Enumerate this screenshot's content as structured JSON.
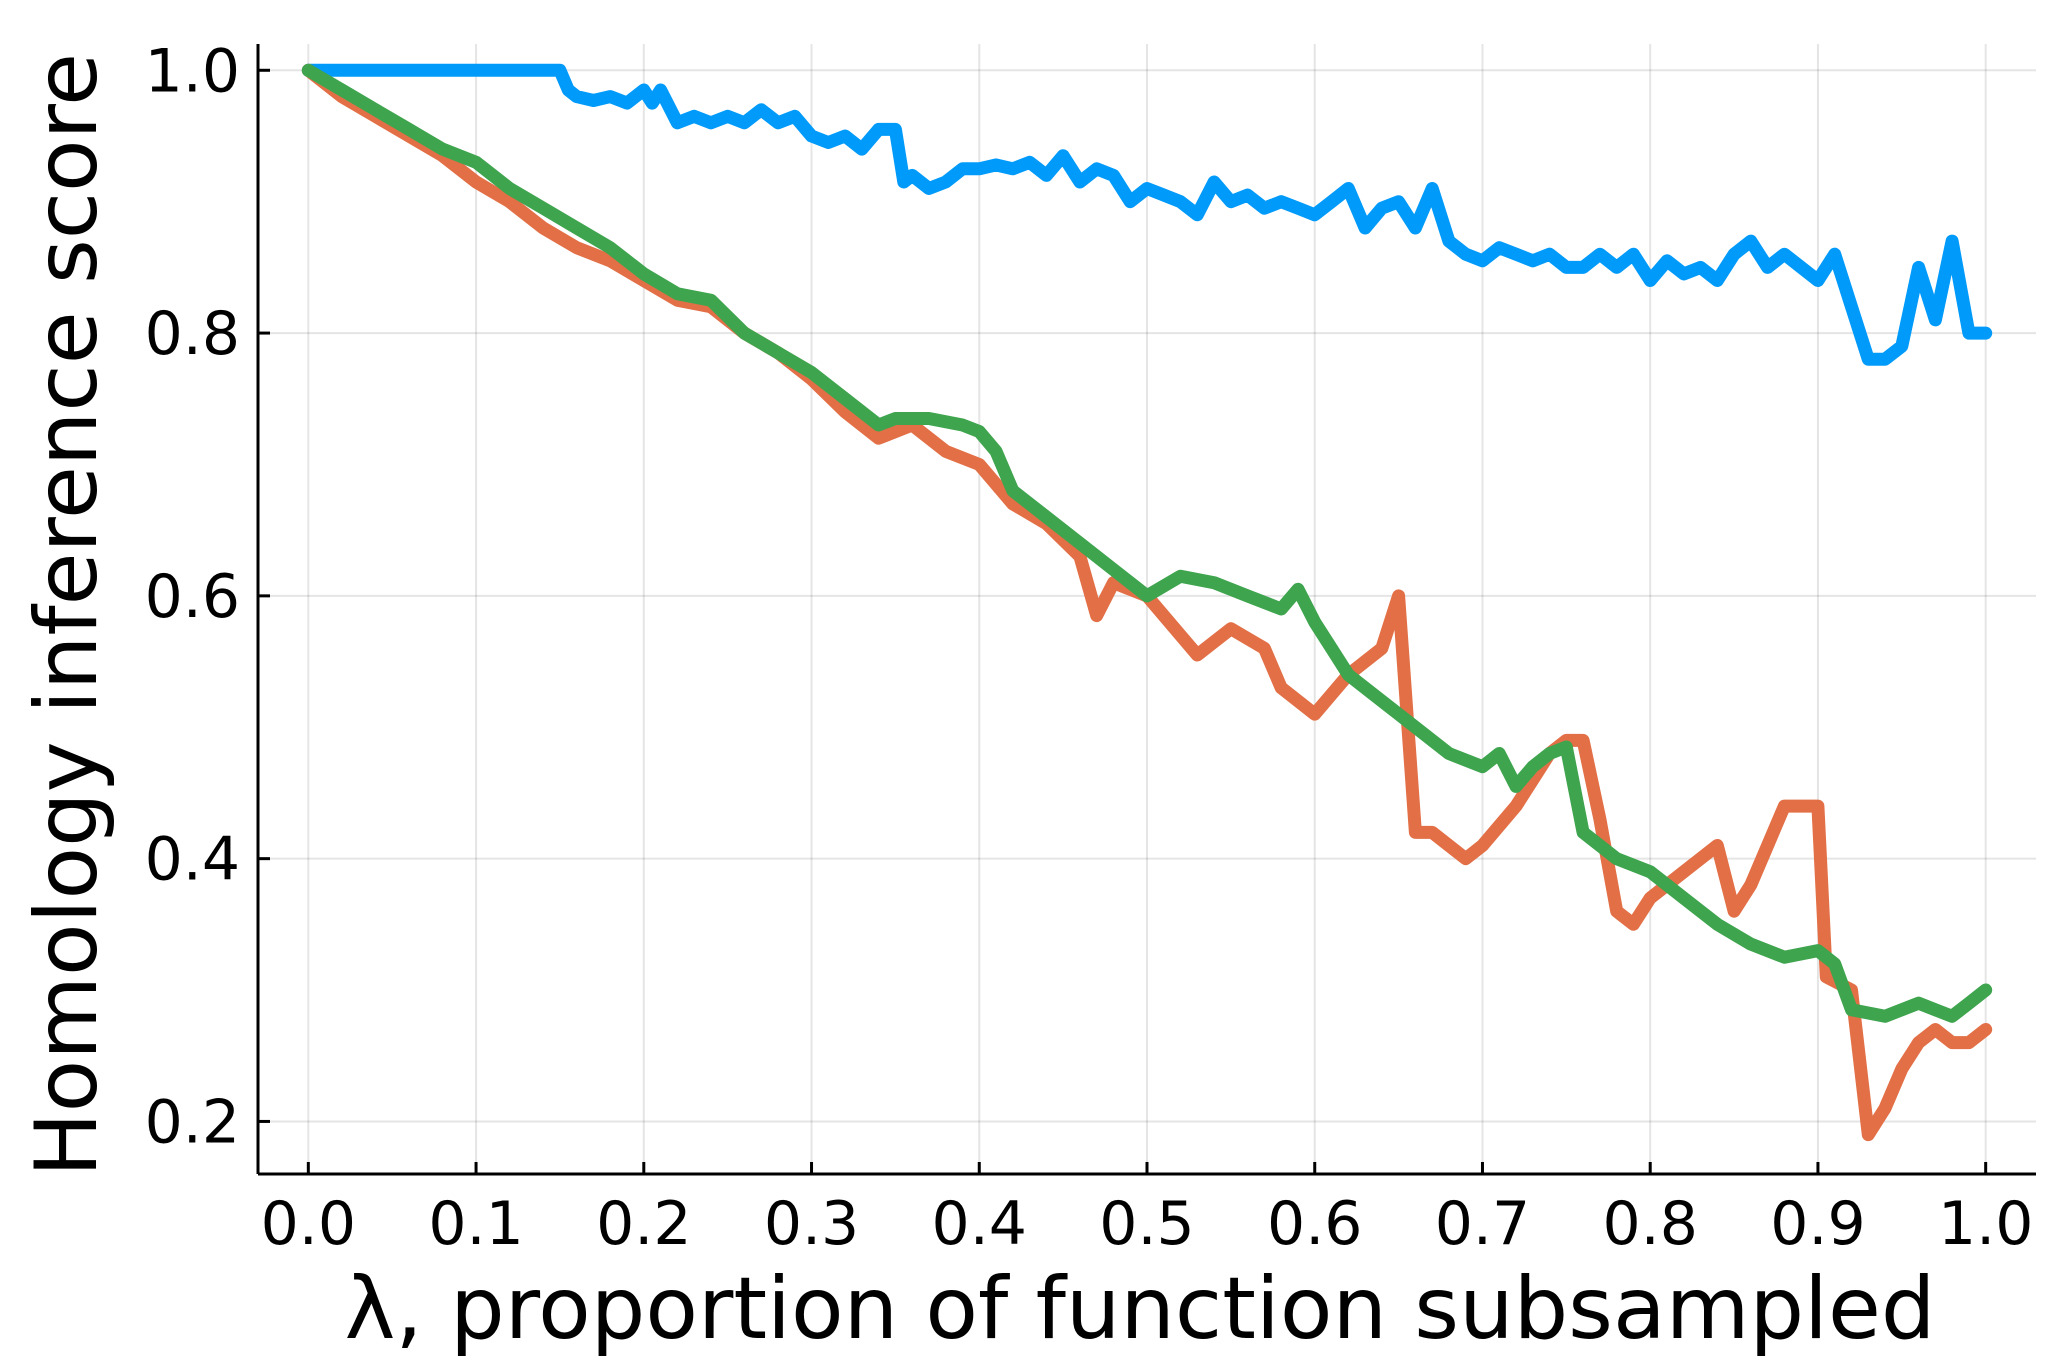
{
  "chart_data": {
    "type": "line",
    "title": "",
    "xlabel": "λ, proportion of function subsampled",
    "ylabel": "Homology inference score",
    "xlim": [
      -0.03,
      1.03
    ],
    "ylim": [
      0.16,
      1.02
    ],
    "xticks": [
      0.0,
      0.1,
      0.2,
      0.3,
      0.4,
      0.5,
      0.6,
      0.7,
      0.8,
      0.9,
      1.0
    ],
    "xtick_labels": [
      "0.0",
      "0.1",
      "0.2",
      "0.3",
      "0.4",
      "0.5",
      "0.6",
      "0.7",
      "0.8",
      "0.9",
      "1.0"
    ],
    "yticks": [
      0.2,
      0.4,
      0.6,
      0.8,
      1.0
    ],
    "ytick_labels": [
      "0.2",
      "0.4",
      "0.6",
      "0.8",
      "1.0"
    ],
    "grid": true,
    "legend": "none",
    "series": [
      {
        "color": "#009AFA",
        "x": [
          0.0,
          0.04,
          0.08,
          0.12,
          0.15,
          0.155,
          0.16,
          0.17,
          0.18,
          0.19,
          0.2,
          0.205,
          0.21,
          0.22,
          0.23,
          0.24,
          0.25,
          0.26,
          0.27,
          0.28,
          0.29,
          0.3,
          0.31,
          0.32,
          0.33,
          0.34,
          0.35,
          0.355,
          0.36,
          0.37,
          0.38,
          0.39,
          0.4,
          0.41,
          0.42,
          0.43,
          0.44,
          0.45,
          0.46,
          0.47,
          0.48,
          0.49,
          0.5,
          0.51,
          0.52,
          0.53,
          0.54,
          0.55,
          0.56,
          0.57,
          0.58,
          0.59,
          0.6,
          0.61,
          0.62,
          0.63,
          0.64,
          0.65,
          0.66,
          0.67,
          0.68,
          0.69,
          0.7,
          0.71,
          0.72,
          0.73,
          0.74,
          0.75,
          0.76,
          0.77,
          0.78,
          0.79,
          0.8,
          0.81,
          0.82,
          0.83,
          0.84,
          0.85,
          0.86,
          0.87,
          0.88,
          0.89,
          0.9,
          0.91,
          0.92,
          0.93,
          0.94,
          0.95,
          0.96,
          0.97,
          0.98,
          0.99,
          1.0
        ],
        "y": [
          1.0,
          1.0,
          1.0,
          1.0,
          1.0,
          0.985,
          0.98,
          0.977,
          0.98,
          0.975,
          0.985,
          0.975,
          0.985,
          0.96,
          0.965,
          0.96,
          0.965,
          0.96,
          0.97,
          0.96,
          0.965,
          0.95,
          0.945,
          0.95,
          0.94,
          0.955,
          0.955,
          0.915,
          0.92,
          0.91,
          0.915,
          0.925,
          0.925,
          0.928,
          0.925,
          0.93,
          0.92,
          0.935,
          0.915,
          0.925,
          0.92,
          0.9,
          0.91,
          0.905,
          0.9,
          0.89,
          0.915,
          0.9,
          0.905,
          0.895,
          0.9,
          0.895,
          0.89,
          0.9,
          0.91,
          0.88,
          0.895,
          0.9,
          0.88,
          0.91,
          0.87,
          0.86,
          0.855,
          0.865,
          0.86,
          0.855,
          0.86,
          0.85,
          0.85,
          0.86,
          0.85,
          0.86,
          0.84,
          0.855,
          0.845,
          0.85,
          0.84,
          0.86,
          0.87,
          0.85,
          0.86,
          0.85,
          0.84,
          0.86,
          0.82,
          0.78,
          0.78,
          0.79,
          0.85,
          0.81,
          0.87,
          0.8,
          0.8
        ]
      },
      {
        "color": "#E26F46",
        "x": [
          0.0,
          0.02,
          0.04,
          0.06,
          0.08,
          0.1,
          0.12,
          0.14,
          0.16,
          0.18,
          0.2,
          0.22,
          0.24,
          0.26,
          0.28,
          0.3,
          0.32,
          0.34,
          0.36,
          0.38,
          0.4,
          0.42,
          0.44,
          0.46,
          0.47,
          0.48,
          0.5,
          0.52,
          0.53,
          0.55,
          0.57,
          0.58,
          0.6,
          0.62,
          0.64,
          0.65,
          0.66,
          0.67,
          0.68,
          0.69,
          0.7,
          0.72,
          0.74,
          0.75,
          0.76,
          0.77,
          0.78,
          0.79,
          0.8,
          0.82,
          0.84,
          0.85,
          0.86,
          0.88,
          0.9,
          0.905,
          0.92,
          0.93,
          0.94,
          0.95,
          0.96,
          0.97,
          0.98,
          0.99,
          1.0
        ],
        "y": [
          1.0,
          0.98,
          0.965,
          0.95,
          0.935,
          0.915,
          0.9,
          0.88,
          0.865,
          0.855,
          0.84,
          0.825,
          0.82,
          0.8,
          0.785,
          0.765,
          0.74,
          0.72,
          0.73,
          0.71,
          0.7,
          0.67,
          0.655,
          0.63,
          0.585,
          0.61,
          0.6,
          0.57,
          0.555,
          0.575,
          0.56,
          0.53,
          0.51,
          0.54,
          0.56,
          0.6,
          0.42,
          0.42,
          0.41,
          0.4,
          0.41,
          0.44,
          0.48,
          0.49,
          0.49,
          0.43,
          0.36,
          0.35,
          0.37,
          0.39,
          0.41,
          0.36,
          0.38,
          0.44,
          0.44,
          0.31,
          0.3,
          0.19,
          0.21,
          0.24,
          0.26,
          0.27,
          0.26,
          0.26,
          0.27
        ]
      },
      {
        "color": "#3EA44E",
        "x": [
          0.0,
          0.02,
          0.04,
          0.06,
          0.08,
          0.1,
          0.12,
          0.14,
          0.16,
          0.18,
          0.2,
          0.22,
          0.24,
          0.26,
          0.28,
          0.3,
          0.32,
          0.34,
          0.35,
          0.37,
          0.39,
          0.4,
          0.41,
          0.42,
          0.44,
          0.46,
          0.48,
          0.5,
          0.52,
          0.54,
          0.56,
          0.58,
          0.59,
          0.6,
          0.61,
          0.62,
          0.64,
          0.66,
          0.68,
          0.7,
          0.71,
          0.72,
          0.73,
          0.74,
          0.75,
          0.76,
          0.78,
          0.8,
          0.82,
          0.84,
          0.86,
          0.88,
          0.9,
          0.91,
          0.92,
          0.94,
          0.96,
          0.97,
          0.98,
          0.99,
          1.0
        ],
        "y": [
          1.0,
          0.985,
          0.97,
          0.955,
          0.94,
          0.93,
          0.91,
          0.895,
          0.88,
          0.865,
          0.845,
          0.83,
          0.825,
          0.8,
          0.785,
          0.77,
          0.75,
          0.73,
          0.735,
          0.735,
          0.73,
          0.725,
          0.71,
          0.68,
          0.66,
          0.64,
          0.62,
          0.6,
          0.615,
          0.61,
          0.6,
          0.59,
          0.605,
          0.58,
          0.56,
          0.54,
          0.52,
          0.5,
          0.48,
          0.47,
          0.48,
          0.455,
          0.47,
          0.48,
          0.485,
          0.42,
          0.4,
          0.39,
          0.37,
          0.35,
          0.335,
          0.325,
          0.33,
          0.32,
          0.285,
          0.28,
          0.29,
          0.285,
          0.28,
          0.29,
          0.3
        ]
      }
    ]
  }
}
